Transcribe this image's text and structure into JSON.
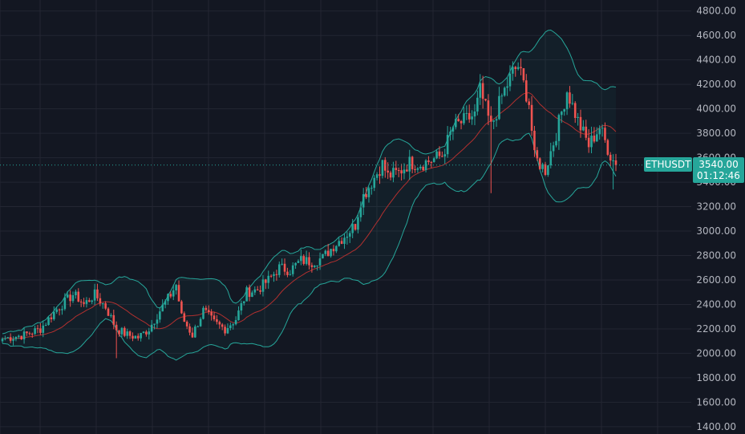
{
  "colors": {
    "background": "#131722",
    "grid": "#232632",
    "up": "#26a69a",
    "down": "#ef5350",
    "bands": "#26a69a",
    "bands_fill": "#26a69a",
    "basis": "#b2302f",
    "axis_text": "#b2b5be",
    "badge": "#26a69a"
  },
  "symbol_badge": {
    "label": "ETHUSDT"
  },
  "price_badge": {
    "price": "3540.00",
    "countdown": "01:12:46"
  },
  "chart_data": {
    "type": "candlestick",
    "symbol": "ETHUSDT",
    "y_axis": {
      "ticks": [
        "4800.00",
        "4600.00",
        "4400.00",
        "4200.00",
        "4000.00",
        "3800.00",
        "3600.00",
        "3400.00",
        "3200.00",
        "3000.00",
        "2800.00",
        "2600.00",
        "2400.00",
        "2200.00",
        "2000.00",
        "1800.00",
        "1600.00",
        "1400.00"
      ],
      "ylim": [
        1340,
        4890
      ]
    },
    "last_price": 3540,
    "overlays": [
      "bollinger-upper",
      "bollinger-basis",
      "bollinger-lower"
    ],
    "anchors_close": [
      [
        0,
        2120
      ],
      [
        8,
        2150
      ],
      [
        14,
        2200
      ],
      [
        20,
        2360
      ],
      [
        26,
        2480
      ],
      [
        28,
        2450
      ],
      [
        30,
        2400
      ],
      [
        34,
        2480
      ],
      [
        38,
        2380
      ],
      [
        42,
        2200
      ],
      [
        46,
        2150
      ],
      [
        50,
        2130
      ],
      [
        54,
        2200
      ],
      [
        58,
        2350
      ],
      [
        62,
        2480
      ],
      [
        64,
        2560
      ],
      [
        66,
        2300
      ],
      [
        70,
        2150
      ],
      [
        74,
        2350
      ],
      [
        78,
        2250
      ],
      [
        82,
        2200
      ],
      [
        86,
        2280
      ],
      [
        90,
        2500
      ],
      [
        94,
        2520
      ],
      [
        98,
        2600
      ],
      [
        102,
        2700
      ],
      [
        106,
        2680
      ],
      [
        110,
        2760
      ],
      [
        114,
        2750
      ],
      [
        118,
        2780
      ],
      [
        122,
        2880
      ],
      [
        126,
        2960
      ],
      [
        130,
        3050
      ],
      [
        132,
        3250
      ],
      [
        136,
        3400
      ],
      [
        140,
        3550
      ],
      [
        142,
        3450
      ],
      [
        146,
        3480
      ],
      [
        150,
        3560
      ],
      [
        154,
        3550
      ],
      [
        158,
        3580
      ],
      [
        162,
        3620
      ],
      [
        166,
        3850
      ],
      [
        170,
        3900
      ],
      [
        174,
        3950
      ],
      [
        176,
        4150
      ],
      [
        180,
        3850
      ],
      [
        184,
        4100
      ],
      [
        188,
        4300
      ],
      [
        190,
        4350
      ],
      [
        194,
        4050
      ],
      [
        196,
        3600
      ],
      [
        200,
        3500
      ],
      [
        204,
        3800
      ],
      [
        208,
        4150
      ],
      [
        212,
        3900
      ],
      [
        216,
        3700
      ],
      [
        220,
        3850
      ],
      [
        224,
        3620
      ],
      [
        226,
        3540
      ]
    ]
  }
}
